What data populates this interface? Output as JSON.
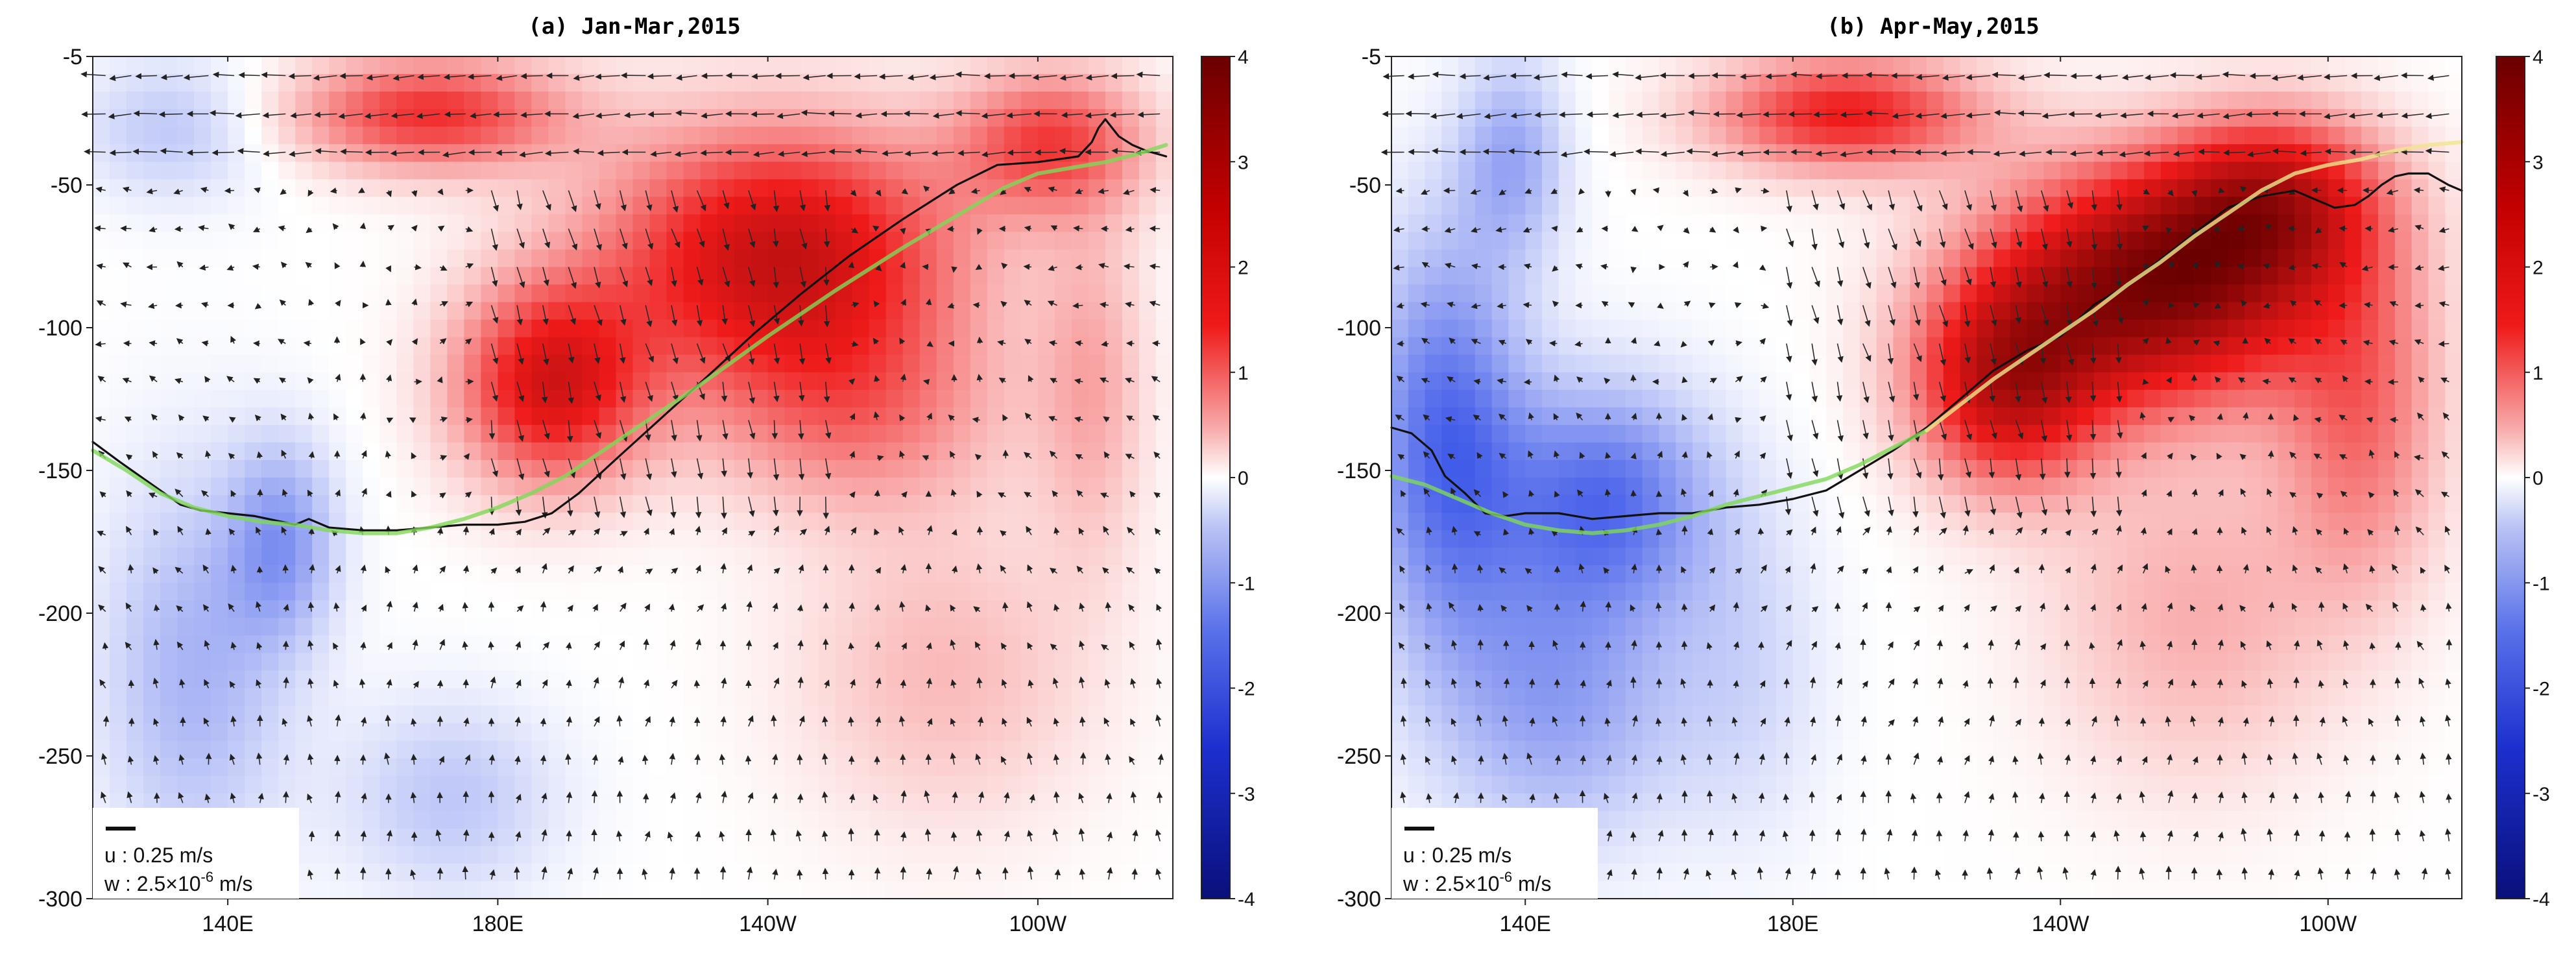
{
  "figure": {
    "colormap": {
      "negative_end": "#0a0f7a",
      "negative_mid": "#2846e6",
      "zero": "#ffffff",
      "positive_mid": "#ef1a1a",
      "positive_end": "#6b0000"
    },
    "line_colors": {
      "black_contour": "#111111",
      "green_line": "#7fd857",
      "yellow_line": "#f0e68c"
    }
  },
  "chart_data": [
    {
      "type": "heatmap",
      "panel_label": "(a)",
      "title": "(a) Jan-Mar,2015",
      "xlabel": "",
      "ylabel": "",
      "xlim_lon": [
        120,
        280
      ],
      "ylim": [
        -300,
        -5
      ],
      "x_ticks": [
        {
          "lon": 140,
          "label": "140E"
        },
        {
          "lon": 180,
          "label": "180E"
        },
        {
          "lon": 220,
          "label": "140W"
        },
        {
          "lon": 260,
          "label": "100W"
        }
      ],
      "y_ticks": [
        {
          "value": -5,
          "label": "-5"
        },
        {
          "value": -50,
          "label": "-50"
        },
        {
          "value": -100,
          "label": "-100"
        },
        {
          "value": -150,
          "label": "-150"
        },
        {
          "value": -200,
          "label": "-200"
        },
        {
          "value": -250,
          "label": "-250"
        },
        {
          "value": -300,
          "label": "-300"
        }
      ],
      "colorbar": {
        "range": [
          -4,
          4
        ],
        "ticks": [
          "4",
          "3",
          "2",
          "1",
          "0",
          "-1",
          "-2",
          "-3",
          "-4"
        ]
      },
      "anomaly_blobs": [
        {
          "lon": 222,
          "depth": -75,
          "value": 2.6,
          "r_lon": 26,
          "r_depth": 45
        },
        {
          "lon": 188,
          "depth": -120,
          "value": 2.3,
          "r_lon": 14,
          "r_depth": 35
        },
        {
          "lon": 170,
          "depth": -25,
          "value": 1.8,
          "r_lon": 20,
          "r_depth": 20
        },
        {
          "lon": 262,
          "depth": -35,
          "value": 1.6,
          "r_lon": 14,
          "r_depth": 25
        },
        {
          "lon": 233,
          "depth": -130,
          "value": 1.0,
          "r_lon": 22,
          "r_depth": 35
        },
        {
          "lon": 246,
          "depth": -220,
          "value": 0.6,
          "r_lon": 22,
          "r_depth": 55
        },
        {
          "lon": 268,
          "depth": -120,
          "value": 0.7,
          "r_lon": 8,
          "r_depth": 60
        },
        {
          "lon": 132,
          "depth": -30,
          "value": -0.6,
          "r_lon": 14,
          "r_depth": 25
        },
        {
          "lon": 135,
          "depth": -220,
          "value": -0.8,
          "r_lon": 14,
          "r_depth": 70
        },
        {
          "lon": 148,
          "depth": -175,
          "value": -1.0,
          "r_lon": 8,
          "r_depth": 35
        },
        {
          "lon": 173,
          "depth": -265,
          "value": -0.6,
          "r_lon": 16,
          "r_depth": 35
        }
      ],
      "series": [
        {
          "name": "black_contour",
          "color": "#111111",
          "x": [
            120,
            124,
            127,
            130,
            133,
            136,
            140,
            144,
            148,
            150,
            152,
            155,
            160,
            165,
            170,
            175,
            180,
            184,
            188,
            192,
            198,
            205,
            212,
            218,
            225,
            232,
            240,
            248,
            254,
            260,
            266,
            268,
            269,
            270,
            271,
            272,
            274,
            276,
            279
          ],
          "y": [
            -140,
            -147,
            -152,
            -157,
            -162,
            -164,
            -165,
            -166,
            -168,
            -169,
            -167,
            -170,
            -171,
            -171,
            -170,
            -169,
            -169,
            -168,
            -165,
            -158,
            -145,
            -130,
            -115,
            -102,
            -88,
            -75,
            -62,
            -50,
            -43,
            -42,
            -40,
            -35,
            -30,
            -27,
            -30,
            -33,
            -36,
            -38,
            -40
          ]
        },
        {
          "name": "green_line",
          "color": "#7fd857",
          "x": [
            120,
            125,
            130,
            135,
            140,
            145,
            150,
            155,
            160,
            165,
            170,
            175,
            180,
            185,
            190,
            195,
            200,
            210,
            220,
            230,
            240,
            250,
            255,
            260,
            265,
            270,
            275,
            279
          ],
          "y": [
            -143,
            -150,
            -158,
            -163,
            -166,
            -168,
            -169,
            -171,
            -172,
            -172,
            -170,
            -167,
            -163,
            -158,
            -152,
            -144,
            -136,
            -120,
            -103,
            -87,
            -72,
            -58,
            -51,
            -46,
            -44,
            -42,
            -39,
            -36
          ]
        }
      ],
      "legend_box": {
        "position": "bottom-left",
        "u_text": "u : 0.25 m/s",
        "w_prefix": "w : 2.5×10",
        "w_exp": "-6",
        "w_suffix": " m/s"
      }
    },
    {
      "type": "heatmap",
      "panel_label": "(b)",
      "title": "(b)  Apr-May,2015",
      "xlabel": "",
      "ylabel": "",
      "xlim_lon": [
        120,
        280
      ],
      "ylim": [
        -300,
        -5
      ],
      "x_ticks": [
        {
          "lon": 140,
          "label": "140E"
        },
        {
          "lon": 180,
          "label": "180E"
        },
        {
          "lon": 220,
          "label": "140W"
        },
        {
          "lon": 260,
          "label": "100W"
        }
      ],
      "y_ticks": [
        {
          "value": -5,
          "label": "-5"
        },
        {
          "value": -50,
          "label": "-50"
        },
        {
          "value": -100,
          "label": "-100"
        },
        {
          "value": -150,
          "label": "-150"
        },
        {
          "value": -200,
          "label": "-200"
        },
        {
          "value": -250,
          "label": "-250"
        },
        {
          "value": -300,
          "label": "-300"
        }
      ],
      "colorbar": {
        "range": [
          -4,
          4
        ],
        "ticks": [
          "4",
          "3",
          "2",
          "1",
          "0",
          "-1",
          "-2",
          "-3",
          "-4"
        ]
      },
      "anomaly_blobs": [
        {
          "lon": 234,
          "depth": -85,
          "value": 3.6,
          "r_lon": 24,
          "r_depth": 40
        },
        {
          "lon": 212,
          "depth": -120,
          "value": 2.5,
          "r_lon": 14,
          "r_depth": 35
        },
        {
          "lon": 252,
          "depth": -55,
          "value": 2.2,
          "r_lon": 16,
          "r_depth": 30
        },
        {
          "lon": 188,
          "depth": -25,
          "value": 2.0,
          "r_lon": 20,
          "r_depth": 20
        },
        {
          "lon": 265,
          "depth": -130,
          "value": 1.2,
          "r_lon": 12,
          "r_depth": 60
        },
        {
          "lon": 240,
          "depth": -200,
          "value": 0.7,
          "r_lon": 22,
          "r_depth": 60
        },
        {
          "lon": 128,
          "depth": -140,
          "value": -1.6,
          "r_lon": 12,
          "r_depth": 70
        },
        {
          "lon": 152,
          "depth": -160,
          "value": -1.5,
          "r_lon": 16,
          "r_depth": 40
        },
        {
          "lon": 145,
          "depth": -230,
          "value": -1.0,
          "r_lon": 18,
          "r_depth": 50
        },
        {
          "lon": 138,
          "depth": -40,
          "value": -0.9,
          "r_lon": 8,
          "r_depth": 35
        },
        {
          "lon": 173,
          "depth": -220,
          "value": -0.4,
          "r_lon": 12,
          "r_depth": 60
        }
      ],
      "series": [
        {
          "name": "black_contour",
          "color": "#111111",
          "x": [
            120,
            123,
            126,
            128,
            131,
            134,
            137,
            140,
            145,
            150,
            155,
            160,
            165,
            170,
            175,
            180,
            185,
            190,
            195,
            200,
            205,
            210,
            215,
            220,
            225,
            230,
            235,
            240,
            245,
            250,
            255,
            258,
            261,
            264,
            266,
            268,
            270,
            272,
            275,
            278,
            280
          ],
          "y": [
            -135,
            -137,
            -143,
            -152,
            -158,
            -165,
            -166,
            -165,
            -165,
            -167,
            -166,
            -165,
            -165,
            -163,
            -162,
            -160,
            -157,
            -150,
            -143,
            -135,
            -125,
            -115,
            -108,
            -103,
            -92,
            -85,
            -76,
            -67,
            -58,
            -54,
            -52,
            -55,
            -58,
            -57,
            -54,
            -50,
            -47,
            -46,
            -46,
            -50,
            -52
          ]
        },
        {
          "name": "green_line",
          "color": "#7fd857",
          "x": [
            120,
            125,
            130,
            135,
            140,
            145,
            150,
            155,
            160,
            165,
            170,
            175,
            180,
            185,
            190,
            195,
            200
          ],
          "y": [
            -152,
            -155,
            -160,
            -165,
            -169,
            -171,
            -172,
            -171,
            -169,
            -166,
            -162,
            -159,
            -156,
            -153,
            -148,
            -142,
            -136
          ]
        },
        {
          "name": "yellow_line",
          "color": "#f0e68c",
          "x": [
            200,
            205,
            210,
            215,
            220,
            225,
            230,
            235,
            240,
            245,
            250,
            255,
            260,
            265,
            270,
            275,
            280
          ],
          "y": [
            -136,
            -127,
            -118,
            -110,
            -102,
            -94,
            -85,
            -77,
            -68,
            -60,
            -52,
            -46,
            -43,
            -41,
            -38,
            -36,
            -35
          ]
        }
      ],
      "legend_box": {
        "position": "bottom-left",
        "u_text": "u : 0.25 m/s",
        "w_prefix": "w : 2.5×10",
        "w_exp": "-6",
        "w_suffix": " m/s"
      }
    }
  ]
}
